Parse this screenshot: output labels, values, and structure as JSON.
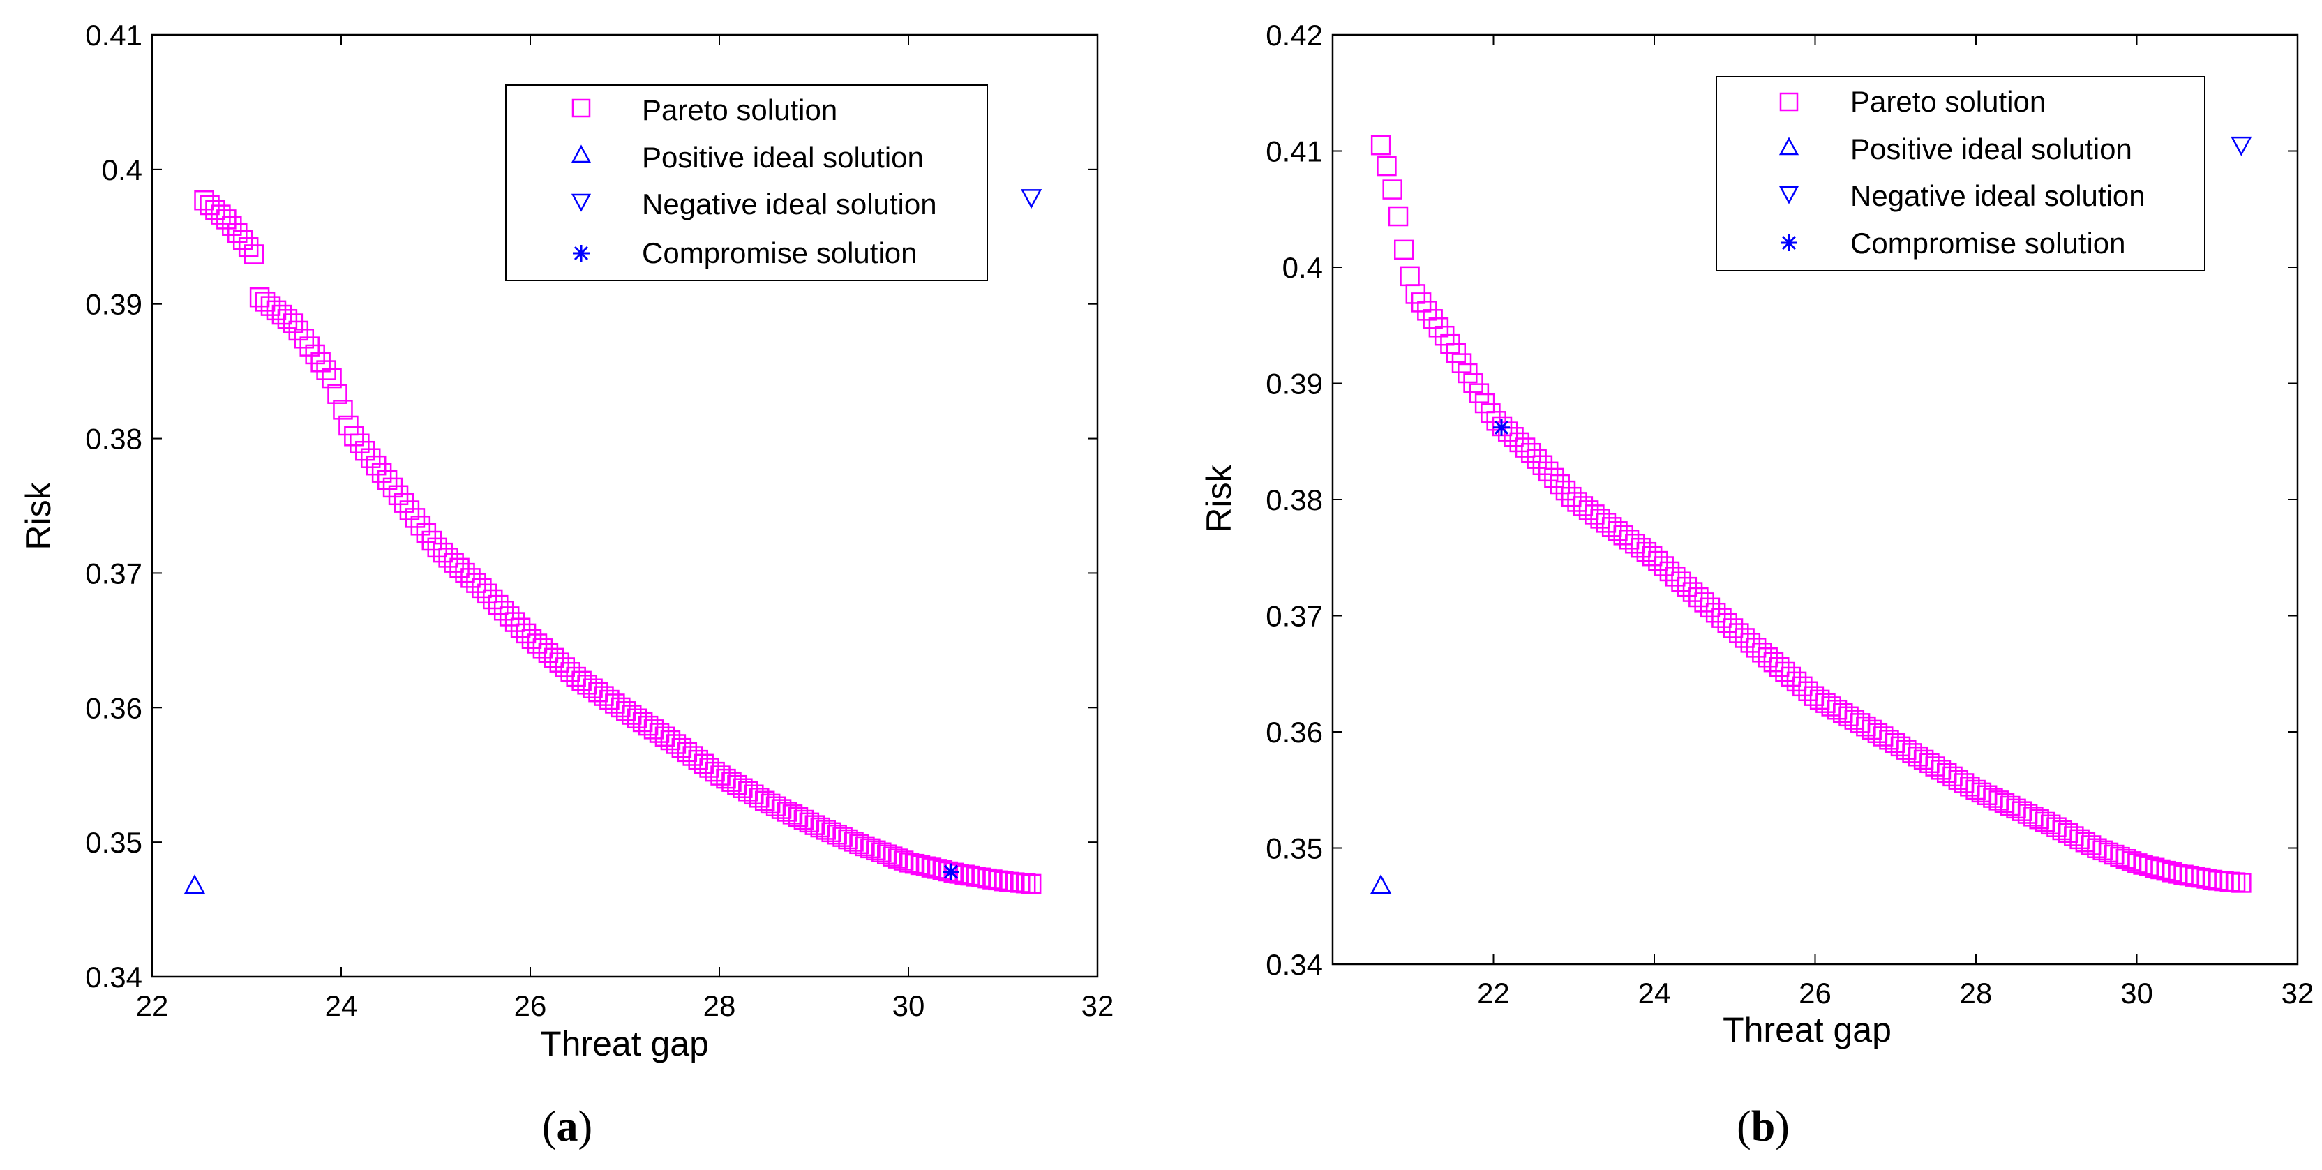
{
  "colors": {
    "pareto": "#ff00ff",
    "ideal": "#0000ff",
    "axis": "#000000"
  },
  "chart_data": [
    {
      "type": "scatter",
      "caption_letter": "a",
      "xlabel": "Threat gap",
      "ylabel": "Risk",
      "xlim": [
        22,
        32
      ],
      "ylim": [
        0.34,
        0.41
      ],
      "xticks": [
        "22",
        "24",
        "26",
        "28",
        "30",
        "32"
      ],
      "xtick_values": [
        22,
        24,
        26,
        28,
        30,
        32
      ],
      "yticks": [
        "0.34",
        "0.35",
        "0.36",
        "0.37",
        "0.38",
        "0.39",
        "0.4",
        "0.41"
      ],
      "ytick_values": [
        0.34,
        0.35,
        0.36,
        0.37,
        0.38,
        0.39,
        0.4,
        0.41
      ],
      "legend": [
        "Pareto solution",
        "Positive ideal solution",
        "Negative ideal solution",
        "Compromise solution"
      ],
      "legend_position": "top-right",
      "pareto_front": {
        "x_start": 22.55,
        "x_end": 31.3,
        "count": 150,
        "anchors": [
          [
            22.5,
            0.398
          ],
          [
            22.8,
            0.3962
          ],
          [
            23.1,
            0.3935
          ],
          [
            23.1,
            0.3907
          ],
          [
            23.5,
            0.3885
          ],
          [
            23.9,
            0.3845
          ],
          [
            24.1,
            0.3805
          ],
          [
            24.5,
            0.3768
          ],
          [
            25.0,
            0.372
          ],
          [
            25.5,
            0.3688
          ],
          [
            26.0,
            0.3652
          ],
          [
            26.5,
            0.3622
          ],
          [
            27.0,
            0.3598
          ],
          [
            27.5,
            0.3575
          ],
          [
            28.0,
            0.355
          ],
          [
            28.5,
            0.353
          ],
          [
            29.0,
            0.3513
          ],
          [
            29.5,
            0.3498
          ],
          [
            30.0,
            0.3485
          ],
          [
            30.5,
            0.3477
          ],
          [
            31.0,
            0.3471
          ],
          [
            31.3,
            0.3469
          ]
        ]
      },
      "positive_ideal": {
        "x": 22.45,
        "y": 0.3468
      },
      "negative_ideal": {
        "x": 31.3,
        "y": 0.3979
      },
      "compromise": {
        "x": 30.45,
        "y": 0.3478
      }
    },
    {
      "type": "scatter",
      "caption_letter": "b",
      "xlabel": "Threat gap",
      "ylabel": "Risk",
      "xlim": [
        20,
        32
      ],
      "ylim": [
        0.34,
        0.42
      ],
      "xticks": [
        "22",
        "24",
        "26",
        "28",
        "30",
        "32"
      ],
      "xtick_values": [
        22,
        24,
        26,
        28,
        30,
        32
      ],
      "yticks": [
        "0.34",
        "0.35",
        "0.36",
        "0.37",
        "0.38",
        "0.39",
        "0.4",
        "0.41",
        "0.42"
      ],
      "ytick_values": [
        0.34,
        0.35,
        0.36,
        0.37,
        0.38,
        0.39,
        0.4,
        0.41,
        0.42
      ],
      "legend": [
        "Pareto solution",
        "Positive ideal solution",
        "Negative ideal solution",
        "Compromise solution"
      ],
      "legend_position": "top-right",
      "pareto_front": {
        "x_start": 20.6,
        "x_end": 31.3,
        "count": 150,
        "anchors": [
          [
            20.6,
            0.4105
          ],
          [
            20.7,
            0.408
          ],
          [
            20.8,
            0.405
          ],
          [
            20.9,
            0.401
          ],
          [
            21.0,
            0.398
          ],
          [
            21.5,
            0.393
          ],
          [
            22.0,
            0.387
          ],
          [
            22.5,
            0.3838
          ],
          [
            23.0,
            0.38
          ],
          [
            24.0,
            0.375
          ],
          [
            25.0,
            0.3688
          ],
          [
            26.0,
            0.363
          ],
          [
            27.0,
            0.359
          ],
          [
            28.0,
            0.355
          ],
          [
            29.0,
            0.3518
          ],
          [
            29.5,
            0.35
          ],
          [
            30.0,
            0.3487
          ],
          [
            30.5,
            0.3478
          ],
          [
            31.0,
            0.3472
          ],
          [
            31.3,
            0.347
          ]
        ]
      },
      "positive_ideal": {
        "x": 20.6,
        "y": 0.3468
      },
      "negative_ideal": {
        "x": 31.3,
        "y": 0.4105
      },
      "compromise": {
        "x": 22.1,
        "y": 0.3862
      }
    }
  ]
}
